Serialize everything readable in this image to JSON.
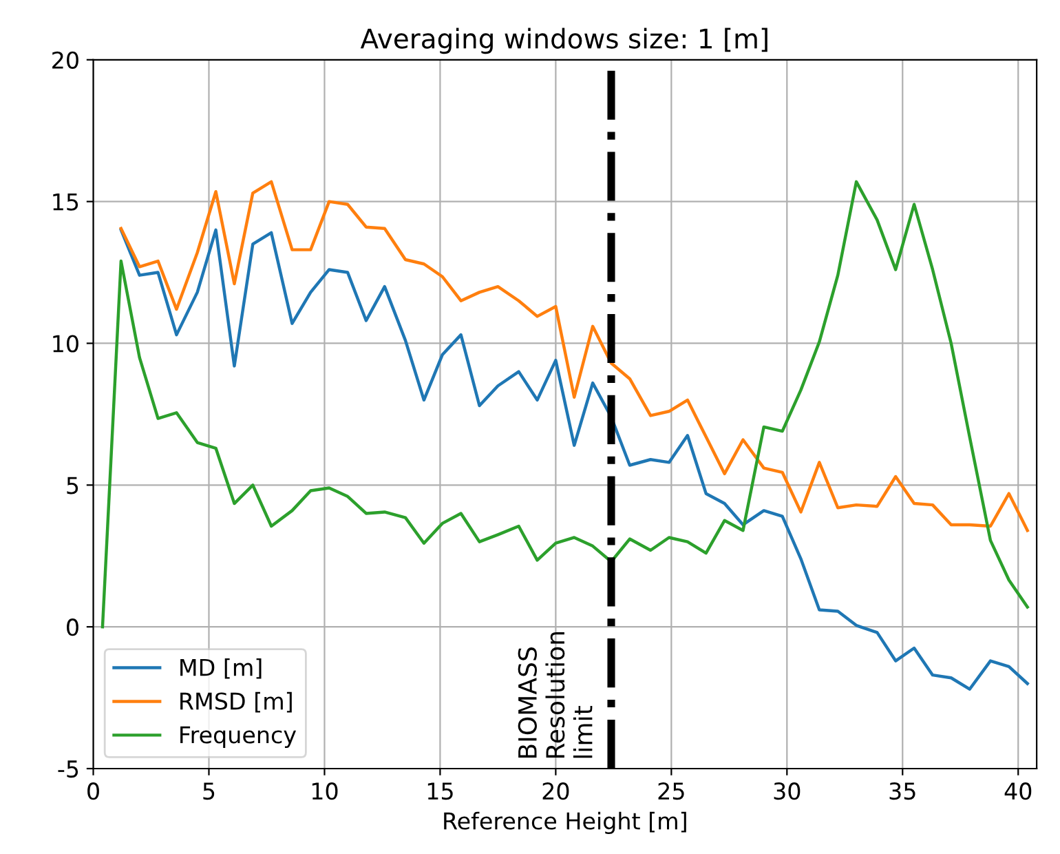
{
  "chart_data": {
    "type": "line",
    "title": "Averaging windows size: 1 [m]",
    "xlabel": "Reference Height [m]",
    "x": [
      1.2,
      2.0,
      2.8,
      3.6,
      4.5,
      5.3,
      6.1,
      6.9,
      7.7,
      8.6,
      9.4,
      10.2,
      11.0,
      11.8,
      12.6,
      13.5,
      14.3,
      15.1,
      15.9,
      16.7,
      17.5,
      18.4,
      19.2,
      20.0,
      20.8,
      21.6,
      22.4,
      23.2,
      24.1,
      24.9,
      25.7,
      26.5,
      27.3,
      28.1,
      29.0,
      29.8,
      30.6,
      31.4,
      32.2,
      33.0,
      33.9,
      34.7,
      35.5,
      36.3,
      37.1,
      37.9,
      38.8,
      39.6,
      40.4
    ],
    "series": [
      {
        "name": "MD [m]",
        "color": "#1f77b4",
        "values": [
          14.0,
          12.4,
          12.5,
          10.3,
          11.8,
          14.0,
          9.2,
          13.5,
          13.9,
          10.7,
          11.8,
          12.6,
          12.5,
          10.8,
          12.0,
          10.1,
          8.0,
          9.6,
          10.3,
          7.8,
          8.5,
          9.0,
          8.0,
          9.4,
          6.4,
          8.6,
          7.4,
          5.7,
          5.9,
          5.8,
          6.75,
          4.7,
          4.35,
          3.6,
          4.1,
          3.9,
          2.4,
          0.6,
          0.55,
          0.05,
          -0.2,
          -1.2,
          -0.75,
          -1.7,
          -1.8,
          -2.2,
          -1.2,
          -1.4,
          -2.0
        ]
      },
      {
        "name": "RMSD [m]",
        "color": "#ff7f0e",
        "values": [
          14.05,
          12.7,
          12.9,
          11.2,
          13.2,
          15.35,
          12.1,
          15.3,
          15.7,
          13.3,
          13.3,
          15.0,
          14.9,
          14.1,
          14.05,
          12.95,
          12.8,
          12.35,
          11.5,
          11.8,
          12.0,
          11.5,
          10.95,
          11.3,
          8.1,
          10.6,
          9.3,
          8.75,
          7.45,
          7.6,
          8.0,
          6.7,
          5.4,
          6.6,
          5.6,
          5.45,
          4.05,
          5.8,
          4.2,
          4.3,
          4.25,
          5.3,
          4.35,
          4.3,
          3.6,
          3.6,
          3.55,
          4.7,
          3.4
        ]
      },
      {
        "name": "Frequency",
        "color": "#2ca02c",
        "x": [
          0.4,
          1.2,
          2.0,
          2.8,
          3.6,
          4.5,
          5.3,
          6.1,
          6.9,
          7.7,
          8.6,
          9.4,
          10.2,
          11.0,
          11.8,
          12.6,
          13.5,
          14.3,
          15.1,
          15.9,
          16.7,
          17.5,
          18.4,
          19.2,
          20.0,
          20.8,
          21.6,
          22.4,
          23.2,
          24.1,
          24.9,
          25.7,
          26.5,
          27.3,
          28.1,
          29.0,
          29.8,
          30.6,
          31.4,
          32.2,
          33.0,
          33.9,
          34.7,
          35.5,
          36.3,
          37.1,
          37.9,
          38.8,
          39.6,
          40.4
        ],
        "values": [
          0,
          12.9,
          9.5,
          7.35,
          7.55,
          6.5,
          6.3,
          4.35,
          5.0,
          3.55,
          4.1,
          4.8,
          4.9,
          4.6,
          4.0,
          4.05,
          3.85,
          2.95,
          3.65,
          4.0,
          3.0,
          3.25,
          3.55,
          2.35,
          2.95,
          3.15,
          2.85,
          2.3,
          3.1,
          2.7,
          3.15,
          3.0,
          2.6,
          3.75,
          3.4,
          7.05,
          6.9,
          8.35,
          10.05,
          12.4,
          15.7,
          14.35,
          12.6,
          14.9,
          12.6,
          10.0,
          6.7,
          3.05,
          1.65,
          0.7
        ]
      }
    ],
    "ref_lines": [
      {
        "axis": "x",
        "value": 22.4,
        "label": "BIOMASS\nResolution\nlimit",
        "color": "#000000",
        "line_style": "dashdot"
      }
    ],
    "xlim": [
      0,
      40.8
    ],
    "ylim": [
      -5,
      20
    ],
    "xticks": [
      0,
      5,
      10,
      15,
      20,
      25,
      30,
      35,
      40
    ],
    "yticks": [
      -5,
      0,
      5,
      10,
      15,
      20
    ],
    "grid": true,
    "legend": "lower left",
    "marker": "none",
    "line_style": "solid"
  }
}
